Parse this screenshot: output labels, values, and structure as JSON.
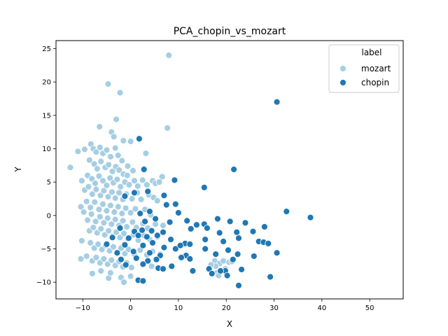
{
  "chart_data": {
    "type": "scatter",
    "title": "PCA_chopin_vs_mozart",
    "xlabel": "X",
    "ylabel": "Y",
    "xlim": [
      -15.6,
      57.0
    ],
    "ylim": [
      -12.5,
      26.2
    ],
    "xticks": [
      -10,
      0,
      10,
      20,
      30,
      40,
      50
    ],
    "yticks": [
      -10,
      -5,
      0,
      5,
      10,
      15,
      20,
      25
    ],
    "grid": false,
    "legend": {
      "title": "label",
      "placement": "top-right"
    },
    "series": [
      {
        "name": "mozart",
        "color": "#a6cee3",
        "points": [
          [
            8.0,
            24.0
          ],
          [
            -4.7,
            19.7
          ],
          [
            -2.2,
            18.4
          ],
          [
            -3.0,
            14.4
          ],
          [
            -6.5,
            13.3
          ],
          [
            7.7,
            13.1
          ],
          [
            -4.0,
            12.5
          ],
          [
            -3.5,
            11.8
          ],
          [
            -1.5,
            11.2
          ],
          [
            0.0,
            11.1
          ],
          [
            -11.0,
            9.6
          ],
          [
            -9.6,
            9.9
          ],
          [
            -12.6,
            7.2
          ],
          [
            -8.3,
            10.7
          ],
          [
            -7.8,
            10.0
          ],
          [
            -7.2,
            9.5
          ],
          [
            -6.4,
            10.2
          ],
          [
            -5.8,
            9.3
          ],
          [
            -5.0,
            9.8
          ],
          [
            -4.2,
            8.8
          ],
          [
            -3.2,
            10.1
          ],
          [
            -2.6,
            9.0
          ],
          [
            -1.8,
            8.2
          ],
          [
            -0.6,
            7.4
          ],
          [
            3.2,
            9.3
          ],
          [
            -8.6,
            8.3
          ],
          [
            -7.6,
            7.7
          ],
          [
            -7.0,
            7.0
          ],
          [
            -6.2,
            8.1
          ],
          [
            -5.3,
            7.2
          ],
          [
            -4.6,
            7.6
          ],
          [
            -3.8,
            6.6
          ],
          [
            -3.1,
            7.3
          ],
          [
            -2.4,
            6.8
          ],
          [
            -1.5,
            6.2
          ],
          [
            -0.7,
            6.0
          ],
          [
            0.5,
            6.7
          ],
          [
            -10.2,
            5.2
          ],
          [
            -9.0,
            6.0
          ],
          [
            -8.1,
            5.5
          ],
          [
            -7.4,
            4.8
          ],
          [
            -6.6,
            5.9
          ],
          [
            -5.8,
            5.2
          ],
          [
            -5.0,
            4.5
          ],
          [
            -4.3,
            5.6
          ],
          [
            -3.6,
            4.9
          ],
          [
            -2.8,
            5.4
          ],
          [
            -2.1,
            4.3
          ],
          [
            -1.2,
            5.0
          ],
          [
            -0.3,
            4.6
          ],
          [
            0.8,
            5.2
          ],
          [
            1.5,
            4.4
          ],
          [
            2.5,
            5.3
          ],
          [
            3.4,
            4.6
          ],
          [
            4.6,
            5.2
          ],
          [
            5.2,
            4.8
          ],
          [
            6.6,
            5.8
          ],
          [
            6.0,
            5.0
          ],
          [
            -9.6,
            3.8
          ],
          [
            -8.8,
            4.3
          ],
          [
            -8.0,
            3.2
          ],
          [
            -7.2,
            3.9
          ],
          [
            -6.3,
            3.0
          ],
          [
            -5.6,
            3.7
          ],
          [
            -4.7,
            2.8
          ],
          [
            -3.9,
            3.5
          ],
          [
            -3.2,
            2.6
          ],
          [
            -2.4,
            3.4
          ],
          [
            -1.6,
            2.4
          ],
          [
            -0.9,
            3.2
          ],
          [
            0.3,
            2.5
          ],
          [
            1.4,
            3.4
          ],
          [
            2.2,
            2.4
          ],
          [
            3.8,
            3.1
          ],
          [
            4.8,
            2.7
          ],
          [
            5.6,
            2.2
          ],
          [
            -10.4,
            1.3
          ],
          [
            -9.2,
            2.1
          ],
          [
            -8.4,
            1.2
          ],
          [
            -7.5,
            2.0
          ],
          [
            -6.6,
            0.9
          ],
          [
            -5.8,
            1.7
          ],
          [
            -5.0,
            0.7
          ],
          [
            -4.2,
            1.5
          ],
          [
            -3.4,
            0.5
          ],
          [
            -2.6,
            1.3
          ],
          [
            -1.8,
            0.3
          ],
          [
            -1.0,
            1.1
          ],
          [
            0.0,
            0.4
          ],
          [
            1.0,
            1.0
          ],
          [
            2.0,
            0.2
          ],
          [
            3.0,
            0.9
          ],
          [
            4.2,
            0.1
          ],
          [
            -9.8,
            0.5
          ],
          [
            -9.0,
            -0.7
          ],
          [
            -8.2,
            0.2
          ],
          [
            -7.3,
            -0.9
          ],
          [
            -6.4,
            -0.2
          ],
          [
            -5.6,
            -1.1
          ],
          [
            -4.8,
            -0.4
          ],
          [
            -4.0,
            -1.3
          ],
          [
            -3.2,
            -0.6
          ],
          [
            -2.4,
            -1.5
          ],
          [
            -1.6,
            -0.8
          ],
          [
            -0.8,
            -1.7
          ],
          [
            0.4,
            -1.0
          ],
          [
            1.2,
            -1.8
          ],
          [
            2.6,
            -1.2
          ],
          [
            3.6,
            -1.9
          ],
          [
            5.2,
            -1.3
          ],
          [
            6.8,
            -1.5
          ],
          [
            -8.6,
            -2.3
          ],
          [
            -7.8,
            -1.8
          ],
          [
            -7.0,
            -2.6
          ],
          [
            -6.2,
            -2.0
          ],
          [
            -5.4,
            -2.9
          ],
          [
            -4.6,
            -2.3
          ],
          [
            -3.8,
            -3.1
          ],
          [
            -3.0,
            -2.5
          ],
          [
            -2.2,
            -3.3
          ],
          [
            -1.4,
            -2.7
          ],
          [
            -0.6,
            -3.5
          ],
          [
            0.6,
            -2.9
          ],
          [
            1.6,
            -3.7
          ],
          [
            2.8,
            -3.0
          ],
          [
            4.0,
            -3.6
          ],
          [
            5.6,
            -3.2
          ],
          [
            -10.2,
            -3.8
          ],
          [
            -8.4,
            -4.1
          ],
          [
            -7.6,
            -4.9
          ],
          [
            -6.8,
            -4.3
          ],
          [
            -6.0,
            -5.1
          ],
          [
            -5.2,
            -4.5
          ],
          [
            -4.4,
            -5.3
          ],
          [
            -3.6,
            -4.7
          ],
          [
            -2.8,
            -5.5
          ],
          [
            -2.0,
            -4.9
          ],
          [
            -1.2,
            -5.7
          ],
          [
            -0.4,
            -5.1
          ],
          [
            0.8,
            -5.8
          ],
          [
            2.0,
            -5.2
          ],
          [
            3.4,
            -5.9
          ],
          [
            4.6,
            -5.4
          ],
          [
            6.2,
            -5.8
          ],
          [
            -10.4,
            -6.5
          ],
          [
            -9.2,
            -6.1
          ],
          [
            -8.0,
            -6.8
          ],
          [
            -7.2,
            -6.3
          ],
          [
            -6.4,
            -7.1
          ],
          [
            -5.6,
            -6.5
          ],
          [
            -4.8,
            -7.3
          ],
          [
            -4.0,
            -6.7
          ],
          [
            -3.2,
            -7.5
          ],
          [
            -2.4,
            -6.9
          ],
          [
            -1.6,
            -7.7
          ],
          [
            -0.8,
            -7.1
          ],
          [
            0.2,
            -7.8
          ],
          [
            2.6,
            -7.2
          ],
          [
            4.4,
            -7.6
          ],
          [
            -8.0,
            -8.7
          ],
          [
            -6.2,
            -8.3
          ],
          [
            -4.6,
            -9.4
          ],
          [
            -4.2,
            -8.6
          ],
          [
            -2.0,
            -9.3
          ],
          [
            -1.4,
            -10.0
          ],
          [
            0.0,
            -9.1
          ],
          [
            17.6,
            -6.8
          ],
          [
            18.6,
            -7.2
          ],
          [
            19.4,
            -6.8
          ],
          [
            20.6,
            -7.0
          ],
          [
            21.2,
            -6.9
          ],
          [
            17.8,
            -7.6
          ],
          [
            18.0,
            -8.6
          ],
          [
            16.8,
            -7.4
          ],
          [
            19.8,
            -8.0
          ],
          [
            18.4,
            -9.0
          ]
        ]
      },
      {
        "name": "chopin",
        "color": "#1f78b4",
        "points": [
          [
            30.6,
            17.0
          ],
          [
            1.8,
            11.5
          ],
          [
            21.6,
            6.9
          ],
          [
            2.8,
            6.9
          ],
          [
            9.2,
            5.3
          ],
          [
            15.4,
            4.2
          ],
          [
            3.6,
            3.6
          ],
          [
            0.8,
            3.4
          ],
          [
            7.0,
            3.0
          ],
          [
            -1.2,
            2.9
          ],
          [
            7.5,
            1.6
          ],
          [
            9.4,
            1.7
          ],
          [
            2.0,
            0.3
          ],
          [
            4.0,
            0.6
          ],
          [
            10.0,
            0.4
          ],
          [
            32.6,
            0.6
          ],
          [
            37.6,
            -0.3
          ],
          [
            5.2,
            -0.5
          ],
          [
            3.0,
            -0.9
          ],
          [
            8.2,
            -1.0
          ],
          [
            11.8,
            -0.8
          ],
          [
            13.8,
            -1.4
          ],
          [
            15.4,
            -1.3
          ],
          [
            18.2,
            -0.5
          ],
          [
            20.8,
            -0.9
          ],
          [
            24.0,
            -1.1
          ],
          [
            28.0,
            -1.7
          ],
          [
            -2.2,
            -1.9
          ],
          [
            0.8,
            -2.4
          ],
          [
            2.4,
            -2.2
          ],
          [
            4.4,
            -2.3
          ],
          [
            6.8,
            -2.5
          ],
          [
            12.6,
            -2.0
          ],
          [
            16.0,
            -1.9
          ],
          [
            18.6,
            -2.6
          ],
          [
            22.2,
            -2.5
          ],
          [
            25.6,
            -2.4
          ],
          [
            -3.8,
            -3.3
          ],
          [
            -0.4,
            -3.4
          ],
          [
            1.6,
            -3.0
          ],
          [
            3.4,
            -3.2
          ],
          [
            5.6,
            -3.0
          ],
          [
            8.4,
            -3.6
          ],
          [
            11.4,
            -4.2
          ],
          [
            12.4,
            -4.3
          ],
          [
            15.6,
            -3.6
          ],
          [
            19.4,
            -3.9
          ],
          [
            22.6,
            -3.4
          ],
          [
            -5.0,
            -4.3
          ],
          [
            -1.2,
            -4.4
          ],
          [
            2.6,
            -4.5
          ],
          [
            4.6,
            -4.1
          ],
          [
            7.0,
            -4.8
          ],
          [
            9.4,
            -5.0
          ],
          [
            10.4,
            -4.5
          ],
          [
            15.6,
            -5.0
          ],
          [
            20.4,
            -5.2
          ],
          [
            26.8,
            -3.9
          ],
          [
            27.8,
            -4.0
          ],
          [
            28.8,
            -4.2
          ],
          [
            -2.8,
            -5.6
          ],
          [
            0.6,
            -5.4
          ],
          [
            4.0,
            -5.6
          ],
          [
            6.2,
            -6.0
          ],
          [
            11.6,
            -6.0
          ],
          [
            17.8,
            -5.8
          ],
          [
            22.4,
            -5.8
          ],
          [
            25.8,
            -6.1
          ],
          [
            30.6,
            -5.6
          ],
          [
            -2.0,
            -6.6
          ],
          [
            1.2,
            -6.4
          ],
          [
            3.6,
            -6.8
          ],
          [
            5.4,
            -6.6
          ],
          [
            10.6,
            -6.3
          ],
          [
            12.4,
            -6.5
          ],
          [
            21.4,
            -6.6
          ],
          [
            -1.0,
            -7.4
          ],
          [
            2.6,
            -7.3
          ],
          [
            5.8,
            -7.9
          ],
          [
            6.8,
            -8.0
          ],
          [
            8.6,
            -7.6
          ],
          [
            13.0,
            -8.3
          ],
          [
            16.4,
            -8.0
          ],
          [
            17.0,
            -8.7
          ],
          [
            19.8,
            -8.3
          ],
          [
            20.2,
            -9.0
          ],
          [
            18.8,
            -8.3
          ],
          [
            23.2,
            -8.1
          ],
          [
            1.6,
            -9.7
          ],
          [
            2.6,
            -9.8
          ],
          [
            22.6,
            -10.5
          ],
          [
            29.2,
            -9.2
          ]
        ]
      }
    ]
  }
}
